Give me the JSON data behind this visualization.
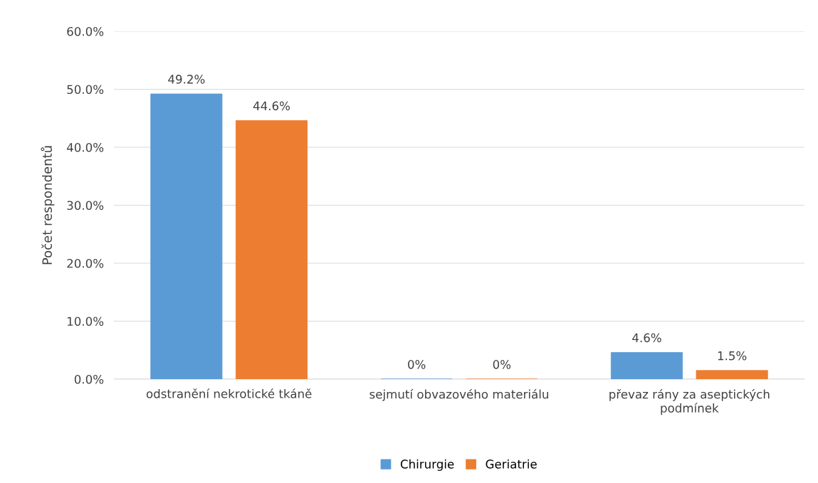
{
  "chart_data": {
    "type": "bar",
    "ylabel": "Počet respondentů",
    "categories": [
      "odstranění nekrotické tkáně",
      "sejmutí obvazového materiálu",
      "převaz rány za aseptických\npodmínek"
    ],
    "series": [
      {
        "name": "Chirurgie",
        "color": "#5b9bd5",
        "values": [
          49.2,
          0,
          4.6
        ],
        "value_labels": [
          "49.2%",
          "0%",
          "4.6%"
        ]
      },
      {
        "name": "Geriatrie",
        "color": "#ed7d31",
        "values": [
          44.6,
          0,
          1.5
        ],
        "value_labels": [
          "44.6%",
          "0%",
          "1.5%"
        ]
      }
    ],
    "ylim": [
      0,
      60
    ],
    "yticks": [
      {
        "value": 0,
        "label": "0.0%"
      },
      {
        "value": 10,
        "label": "10.0%"
      },
      {
        "value": 20,
        "label": "20.0%"
      },
      {
        "value": 30,
        "label": "30.0%"
      },
      {
        "value": 40,
        "label": "40.0%"
      },
      {
        "value": 50,
        "label": "50.0%"
      },
      {
        "value": 60,
        "label": "60.0%"
      }
    ],
    "grid": "y",
    "legend": "bottom"
  }
}
